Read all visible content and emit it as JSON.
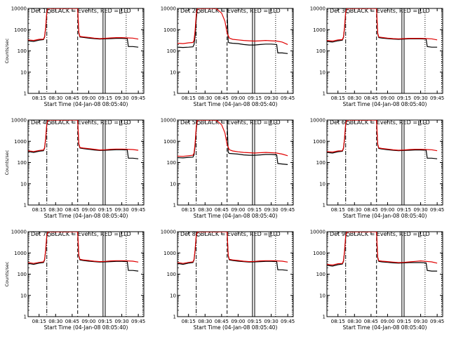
{
  "chart_data": {
    "type": "line",
    "x_tick_labels": [
      "08:15",
      "08:30",
      "08:45",
      "09:00",
      "09:15",
      "09:30",
      "09:45"
    ],
    "x_ticks_minutes": [
      15,
      30,
      45,
      60,
      75,
      90,
      105
    ],
    "xlim_minutes": [
      5,
      110
    ],
    "y_scale": "log",
    "ylim": [
      1,
      10000
    ],
    "y_tick_labels": [
      "1",
      "10",
      "100",
      "1000",
      "10000"
    ],
    "y_ticks": [
      1,
      10,
      100,
      1000,
      10000
    ],
    "ylabel": "Counts/sec",
    "xlabel": "Start Time (04-Jan-08 08:05:40)",
    "grid": false,
    "series_colors": {
      "events": "#000000",
      "lld": "#e00000"
    },
    "vertical_markers": [
      {
        "x": 22,
        "style": "dashdot"
      },
      {
        "x": 50,
        "style": "dashed"
      },
      {
        "x": 73,
        "style": "solid"
      },
      {
        "x": 75,
        "style": "solid"
      },
      {
        "x": 94,
        "style": "dotted"
      },
      {
        "x": 109,
        "style": "dotted"
      }
    ],
    "panels": [
      {
        "title": "Det 1c BLACK = Events, RED = LLD",
        "events": {
          "x": [
            5,
            10,
            15,
            19,
            20,
            21,
            22,
            23,
            24,
            25,
            26,
            50,
            51,
            52,
            55,
            60,
            65,
            70,
            75,
            80,
            85,
            90,
            95,
            96,
            100,
            105
          ],
          "y": [
            300,
            280,
            320,
            340,
            450,
            1200,
            6000,
            10000,
            10000,
            10000,
            10000,
            10000,
            700,
            450,
            430,
            400,
            380,
            360,
            370,
            380,
            390,
            390,
            380,
            160,
            160,
            150
          ]
        },
        "lld": {
          "x": [
            5,
            10,
            15,
            19,
            20,
            21,
            22,
            23,
            24,
            25,
            26,
            50,
            51,
            52,
            55,
            60,
            65,
            70,
            75,
            80,
            85,
            90,
            95,
            100,
            105
          ],
          "y": [
            330,
            310,
            350,
            360,
            480,
            1300,
            6500,
            10000,
            10000,
            10000,
            10000,
            10000,
            750,
            480,
            460,
            430,
            400,
            380,
            390,
            410,
            420,
            420,
            410,
            400,
            360
          ]
        }
      },
      {
        "title": "Det 2c BLACK = Events, RED = LLD",
        "events": {
          "x": [
            5,
            10,
            15,
            19,
            20,
            21,
            22,
            23,
            24,
            25,
            26,
            40,
            45,
            50,
            51,
            52,
            55,
            60,
            65,
            70,
            75,
            80,
            85,
            90,
            95,
            96,
            100,
            105
          ],
          "y": [
            150,
            145,
            150,
            155,
            200,
            500,
            3000,
            10000,
            10000,
            10000,
            10000,
            10000,
            10000,
            10000,
            260,
            240,
            230,
            220,
            200,
            190,
            190,
            200,
            210,
            210,
            200,
            80,
            80,
            75
          ]
        },
        "lld": {
          "x": [
            5,
            10,
            15,
            19,
            20,
            21,
            22,
            23,
            24,
            25,
            26,
            35,
            40,
            45,
            48,
            50,
            52,
            55,
            60,
            65,
            70,
            75,
            80,
            85,
            90,
            95,
            100,
            105
          ],
          "y": [
            230,
            220,
            240,
            250,
            320,
            900,
            5000,
            10000,
            10000,
            10000,
            10000,
            10000,
            10000,
            6000,
            2500,
            700,
            400,
            350,
            330,
            310,
            300,
            290,
            300,
            310,
            300,
            290,
            260,
            200
          ]
        }
      },
      {
        "title": "Det 3c BLACK = Events, RED = LLD",
        "events": {
          "x": [
            5,
            10,
            15,
            19,
            20,
            21,
            22,
            23,
            24,
            25,
            26,
            50,
            51,
            52,
            55,
            60,
            65,
            70,
            75,
            80,
            85,
            90,
            95,
            96,
            100,
            105
          ],
          "y": [
            280,
            260,
            300,
            320,
            430,
            1200,
            6000,
            10000,
            10000,
            10000,
            10000,
            10000,
            650,
            420,
            400,
            380,
            360,
            350,
            360,
            370,
            370,
            370,
            360,
            160,
            150,
            150
          ]
        },
        "lld": {
          "x": [
            5,
            10,
            15,
            19,
            20,
            21,
            22,
            23,
            24,
            25,
            26,
            50,
            51,
            52,
            55,
            60,
            65,
            70,
            75,
            80,
            85,
            90,
            95,
            100,
            105
          ],
          "y": [
            310,
            290,
            330,
            340,
            460,
            1300,
            6500,
            10000,
            10000,
            10000,
            10000,
            10000,
            700,
            450,
            430,
            400,
            380,
            370,
            380,
            390,
            390,
            390,
            380,
            370,
            330
          ]
        }
      },
      {
        "title": "Det 4c BLACK = Events, RED = LLD",
        "events": {
          "x": [
            5,
            10,
            15,
            19,
            20,
            21,
            22,
            23,
            24,
            25,
            26,
            50,
            51,
            52,
            55,
            60,
            65,
            70,
            75,
            80,
            85,
            90,
            95,
            96,
            100,
            105
          ],
          "y": [
            330,
            300,
            340,
            360,
            480,
            1300,
            6000,
            10000,
            10000,
            10000,
            10000,
            10000,
            720,
            480,
            450,
            420,
            390,
            370,
            380,
            390,
            400,
            400,
            390,
            160,
            160,
            150
          ]
        },
        "lld": {
          "x": [
            5,
            10,
            15,
            19,
            20,
            21,
            22,
            23,
            24,
            25,
            26,
            50,
            51,
            52,
            55,
            60,
            65,
            70,
            75,
            80,
            85,
            90,
            95,
            100,
            105
          ],
          "y": [
            360,
            330,
            370,
            390,
            510,
            1400,
            6500,
            10000,
            10000,
            10000,
            10000,
            10000,
            780,
            510,
            480,
            450,
            420,
            390,
            400,
            420,
            430,
            430,
            420,
            410,
            380
          ]
        }
      },
      {
        "title": "Det 5c BLACK = Events, RED = LLD",
        "events": {
          "x": [
            5,
            10,
            15,
            19,
            20,
            21,
            22,
            23,
            24,
            25,
            26,
            40,
            45,
            50,
            51,
            52,
            55,
            60,
            65,
            70,
            75,
            80,
            85,
            90,
            95,
            96,
            100,
            105
          ],
          "y": [
            170,
            165,
            175,
            180,
            230,
            600,
            3500,
            10000,
            10000,
            10000,
            10000,
            10000,
            10000,
            10000,
            300,
            270,
            260,
            250,
            230,
            220,
            220,
            230,
            240,
            240,
            230,
            90,
            85,
            80
          ]
        },
        "lld": {
          "x": [
            5,
            10,
            15,
            19,
            20,
            21,
            22,
            23,
            24,
            25,
            26,
            35,
            40,
            45,
            48,
            50,
            52,
            55,
            60,
            65,
            70,
            75,
            80,
            85,
            90,
            95,
            100,
            105
          ],
          "y": [
            200,
            195,
            210,
            220,
            280,
            800,
            4500,
            10000,
            10000,
            10000,
            10000,
            10000,
            10000,
            6000,
            2500,
            700,
            400,
            350,
            320,
            300,
            290,
            280,
            290,
            300,
            290,
            280,
            250,
            210
          ]
        }
      },
      {
        "title": "Det 6c BLACK = Events, RED = LLD",
        "events": {
          "x": [
            5,
            10,
            15,
            19,
            20,
            21,
            22,
            23,
            24,
            25,
            26,
            50,
            51,
            52,
            55,
            60,
            65,
            70,
            75,
            80,
            85,
            90,
            95,
            96,
            100,
            105
          ],
          "y": [
            300,
            280,
            320,
            340,
            460,
            1250,
            6000,
            10000,
            10000,
            10000,
            10000,
            10000,
            700,
            460,
            430,
            400,
            380,
            360,
            370,
            380,
            390,
            390,
            380,
            160,
            160,
            150
          ]
        },
        "lld": {
          "x": [
            5,
            10,
            15,
            19,
            20,
            21,
            22,
            23,
            24,
            25,
            26,
            50,
            51,
            52,
            55,
            60,
            65,
            70,
            75,
            80,
            85,
            90,
            95,
            100,
            105
          ],
          "y": [
            330,
            310,
            350,
            360,
            490,
            1350,
            6500,
            10000,
            10000,
            10000,
            10000,
            10000,
            760,
            490,
            460,
            430,
            400,
            380,
            390,
            410,
            420,
            420,
            410,
            400,
            360
          ]
        }
      },
      {
        "title": "Det 7c BLACK = Events, RED = LLD",
        "events": {
          "x": [
            5,
            10,
            15,
            19,
            20,
            21,
            22,
            23,
            24,
            25,
            26,
            50,
            51,
            52,
            55,
            60,
            65,
            70,
            75,
            80,
            85,
            90,
            95,
            96,
            100,
            105
          ],
          "y": [
            320,
            290,
            330,
            350,
            470,
            1300,
            6000,
            10000,
            10000,
            10000,
            10000,
            10000,
            700,
            470,
            440,
            410,
            390,
            370,
            380,
            390,
            400,
            400,
            390,
            150,
            150,
            140
          ]
        },
        "lld": {
          "x": [
            5,
            10,
            15,
            19,
            20,
            21,
            22,
            23,
            24,
            25,
            26,
            50,
            51,
            52,
            55,
            60,
            65,
            70,
            75,
            80,
            85,
            90,
            95,
            100,
            105
          ],
          "y": [
            350,
            320,
            360,
            380,
            500,
            1400,
            6500,
            10000,
            10000,
            10000,
            10000,
            10000,
            770,
            500,
            470,
            440,
            410,
            390,
            400,
            420,
            430,
            430,
            420,
            410,
            370
          ]
        }
      },
      {
        "title": "Det 8c BLACK = Events, RED = LLD",
        "events": {
          "x": [
            5,
            10,
            15,
            19,
            20,
            21,
            22,
            23,
            24,
            25,
            26,
            50,
            51,
            52,
            55,
            60,
            65,
            70,
            75,
            80,
            85,
            90,
            95,
            96,
            100,
            105
          ],
          "y": [
            320,
            290,
            330,
            350,
            470,
            1300,
            6000,
            10000,
            10000,
            10000,
            10000,
            10000,
            700,
            470,
            440,
            410,
            390,
            370,
            380,
            390,
            400,
            400,
            390,
            160,
            160,
            150
          ]
        },
        "lld": {
          "x": [
            5,
            10,
            15,
            19,
            20,
            21,
            22,
            23,
            24,
            25,
            26,
            50,
            51,
            52,
            55,
            60,
            65,
            70,
            75,
            80,
            85,
            90,
            95,
            100,
            105
          ],
          "y": [
            350,
            320,
            360,
            380,
            500,
            1400,
            6500,
            10000,
            10000,
            10000,
            10000,
            10000,
            770,
            500,
            470,
            440,
            410,
            390,
            400,
            420,
            430,
            430,
            420,
            410,
            370
          ]
        }
      },
      {
        "title": "Det 9c BLACK = Events, RED = LLD",
        "events": {
          "x": [
            5,
            10,
            15,
            19,
            20,
            21,
            22,
            23,
            24,
            25,
            26,
            50,
            51,
            52,
            55,
            60,
            65,
            70,
            75,
            80,
            85,
            90,
            95,
            96,
            100,
            105
          ],
          "y": [
            260,
            240,
            280,
            300,
            400,
            1100,
            5500,
            10000,
            10000,
            10000,
            10000,
            10000,
            600,
            400,
            380,
            360,
            340,
            330,
            340,
            350,
            350,
            350,
            340,
            150,
            140,
            140
          ]
        },
        "lld": {
          "x": [
            5,
            10,
            15,
            19,
            20,
            21,
            22,
            23,
            24,
            25,
            26,
            50,
            51,
            52,
            55,
            60,
            65,
            70,
            75,
            80,
            85,
            90,
            95,
            100,
            105
          ],
          "y": [
            290,
            270,
            310,
            320,
            430,
            1200,
            6000,
            10000,
            10000,
            10000,
            10000,
            10000,
            650,
            430,
            410,
            390,
            370,
            350,
            360,
            380,
            400,
            420,
            400,
            380,
            330
          ]
        }
      }
    ]
  }
}
